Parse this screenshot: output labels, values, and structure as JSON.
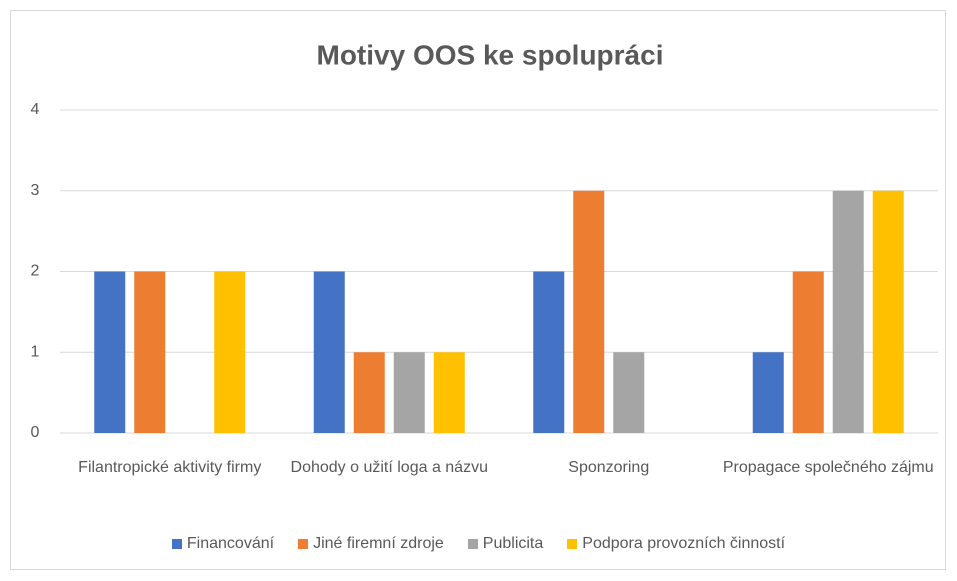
{
  "chart_data": {
    "type": "bar",
    "title": "Motivy OOS ke spolupráci",
    "categories": [
      "Filantropické aktivity firmy",
      "Dohody o užití loga a názvu",
      "Sponzoring",
      "Propagace společného zájmu"
    ],
    "series": [
      {
        "name": "Financování",
        "color": "#4472c4",
        "values": [
          2,
          2,
          2,
          1
        ]
      },
      {
        "name": "Jiné firemní zdroje",
        "color": "#ed7d31",
        "values": [
          2,
          1,
          3,
          2
        ]
      },
      {
        "name": "Publicita",
        "color": "#a5a5a5",
        "values": [
          0,
          1,
          1,
          3
        ]
      },
      {
        "name": "Podpora provozních činností",
        "color": "#ffc000",
        "values": [
          2,
          1,
          0,
          3
        ]
      }
    ],
    "ylim": [
      0,
      4
    ],
    "yticks": [
      0,
      1,
      2,
      3,
      4
    ],
    "grid": true,
    "legend": "bottom"
  }
}
